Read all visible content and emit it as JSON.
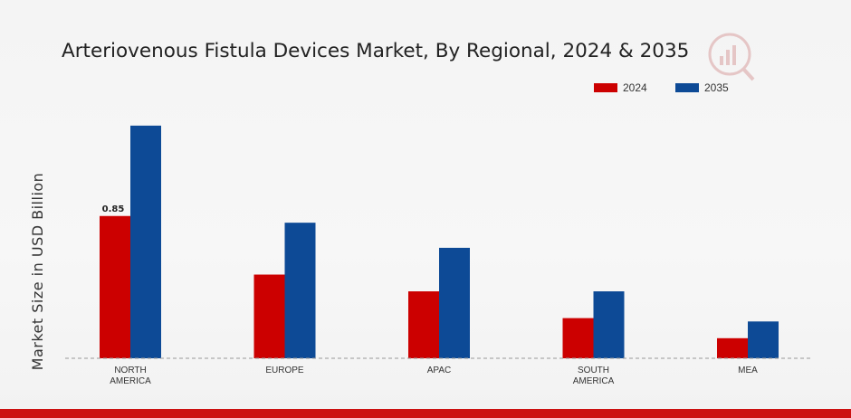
{
  "chart_data": {
    "type": "bar",
    "title": "Arteriovenous Fistula Devices Market, By Regional, 2024 & 2035",
    "xlabel": "",
    "ylabel": "Market Size in USD Billion",
    "categories": [
      "NORTH AMERICA",
      "EUROPE",
      "APAC",
      "SOUTH AMERICA",
      "MEA"
    ],
    "category_lines": [
      [
        "NORTH",
        "AMERICA"
      ],
      [
        "EUROPE"
      ],
      [
        "APAC"
      ],
      [
        "SOUTH",
        "AMERICA"
      ],
      [
        "MEA"
      ]
    ],
    "series": [
      {
        "name": "2024",
        "color": "#cc0000",
        "values": [
          0.85,
          0.5,
          0.4,
          0.24,
          0.12
        ]
      },
      {
        "name": "2035",
        "color": "#0d4a96",
        "values": [
          1.39,
          0.81,
          0.66,
          0.4,
          0.22
        ]
      }
    ],
    "data_labels": [
      {
        "series": 0,
        "index": 0,
        "text": "0.85"
      }
    ],
    "ylim": [
      0,
      1.6
    ],
    "grid": false,
    "legend": "top-right",
    "baseline_style": "dashed"
  },
  "watermark": {
    "icon": "market-research-logo-icon",
    "color": "#d9a0a0"
  },
  "footer": {
    "color": "#cc1111"
  }
}
